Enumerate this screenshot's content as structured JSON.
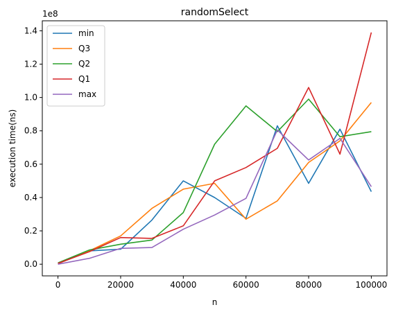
{
  "chart_data": {
    "type": "line",
    "title": "randomSelect",
    "xlabel": "n",
    "ylabel": "execution time(ns)",
    "y_scale_label": "1e8",
    "x": [
      0,
      10000,
      20000,
      30000,
      40000,
      50000,
      60000,
      70000,
      80000,
      90000,
      100000
    ],
    "xlim": [
      -5000,
      105000
    ],
    "ylim": [
      -7000000,
      146000000
    ],
    "xticks": [
      0,
      20000,
      40000,
      60000,
      80000,
      100000
    ],
    "xtick_labels": [
      "0",
      "20000",
      "40000",
      "60000",
      "80000",
      "100000"
    ],
    "yticks": [
      0,
      20000000,
      40000000,
      60000000,
      80000000,
      100000000,
      120000000,
      140000000
    ],
    "ytick_labels": [
      "0.0",
      "0.2",
      "0.4",
      "0.6",
      "0.8",
      "1.0",
      "1.2",
      "1.4"
    ],
    "grid": false,
    "legend_position": "top-left",
    "series": [
      {
        "name": "min",
        "color": "#1f77b4",
        "values": [
          300000,
          8000000,
          9000000,
          26500000,
          50000000,
          40000000,
          27500000,
          83000000,
          48500000,
          81000000,
          43500000
        ]
      },
      {
        "name": "Q3",
        "color": "#ff7f0e",
        "values": [
          300000,
          8000000,
          17000000,
          33500000,
          45000000,
          48500000,
          27000000,
          38000000,
          61000000,
          74000000,
          97000000
        ]
      },
      {
        "name": "Q2",
        "color": "#2ca02c",
        "values": [
          800000,
          8500000,
          12000000,
          14500000,
          31000000,
          72000000,
          95000000,
          79500000,
          99000000,
          76500000,
          79500000
        ]
      },
      {
        "name": "Q1",
        "color": "#d62728",
        "values": [
          500000,
          7500000,
          16000000,
          15500000,
          23000000,
          50000000,
          58000000,
          69500000,
          106000000,
          66000000,
          139000000
        ]
      },
      {
        "name": "max",
        "color": "#9467bd",
        "values": [
          0,
          3500000,
          9500000,
          10000000,
          21000000,
          29500000,
          39500000,
          80500000,
          62500000,
          75500000,
          46500000
        ]
      }
    ]
  }
}
